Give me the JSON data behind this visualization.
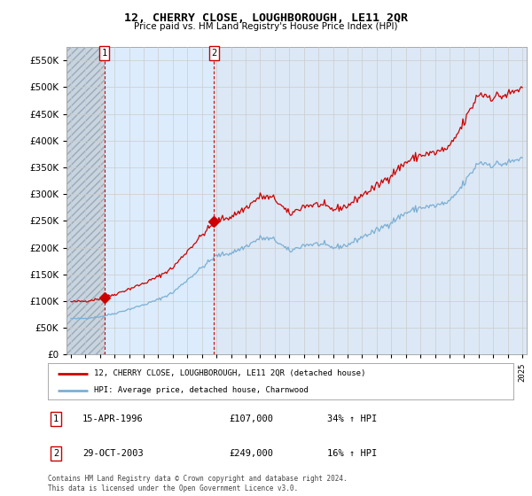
{
  "title": "12, CHERRY CLOSE, LOUGHBOROUGH, LE11 2QR",
  "subtitle": "Price paid vs. HM Land Registry's House Price Index (HPI)",
  "legend_line1": "12, CHERRY CLOSE, LOUGHBOROUGH, LE11 2QR (detached house)",
  "legend_line2": "HPI: Average price, detached house, Charnwood",
  "transaction1_label": "1",
  "transaction1_date": "15-APR-1996",
  "transaction1_price": "£107,000",
  "transaction1_hpi": "34% ↑ HPI",
  "transaction2_label": "2",
  "transaction2_date": "29-OCT-2003",
  "transaction2_price": "£249,000",
  "transaction2_hpi": "16% ↑ HPI",
  "footer": "Contains HM Land Registry data © Crown copyright and database right 2024.\nThis data is licensed under the Open Government Licence v3.0.",
  "hpi_color": "#7bafd4",
  "price_color": "#cc0000",
  "marker_color": "#cc0000",
  "dashed_color": "#cc0000",
  "grid_color": "#cccccc",
  "plot_bg_color": "#dce8f5",
  "hatch_bg_color": "#d0d8e0",
  "ylim": [
    0,
    575000
  ],
  "yticks": [
    0,
    50000,
    100000,
    150000,
    200000,
    250000,
    300000,
    350000,
    400000,
    450000,
    500000,
    550000
  ],
  "transaction1_x": 1996.29,
  "transaction2_x": 2003.83,
  "transaction1_y": 107000,
  "transaction2_y": 249000,
  "xlim_left": 1993.7,
  "xlim_right": 2025.3
}
